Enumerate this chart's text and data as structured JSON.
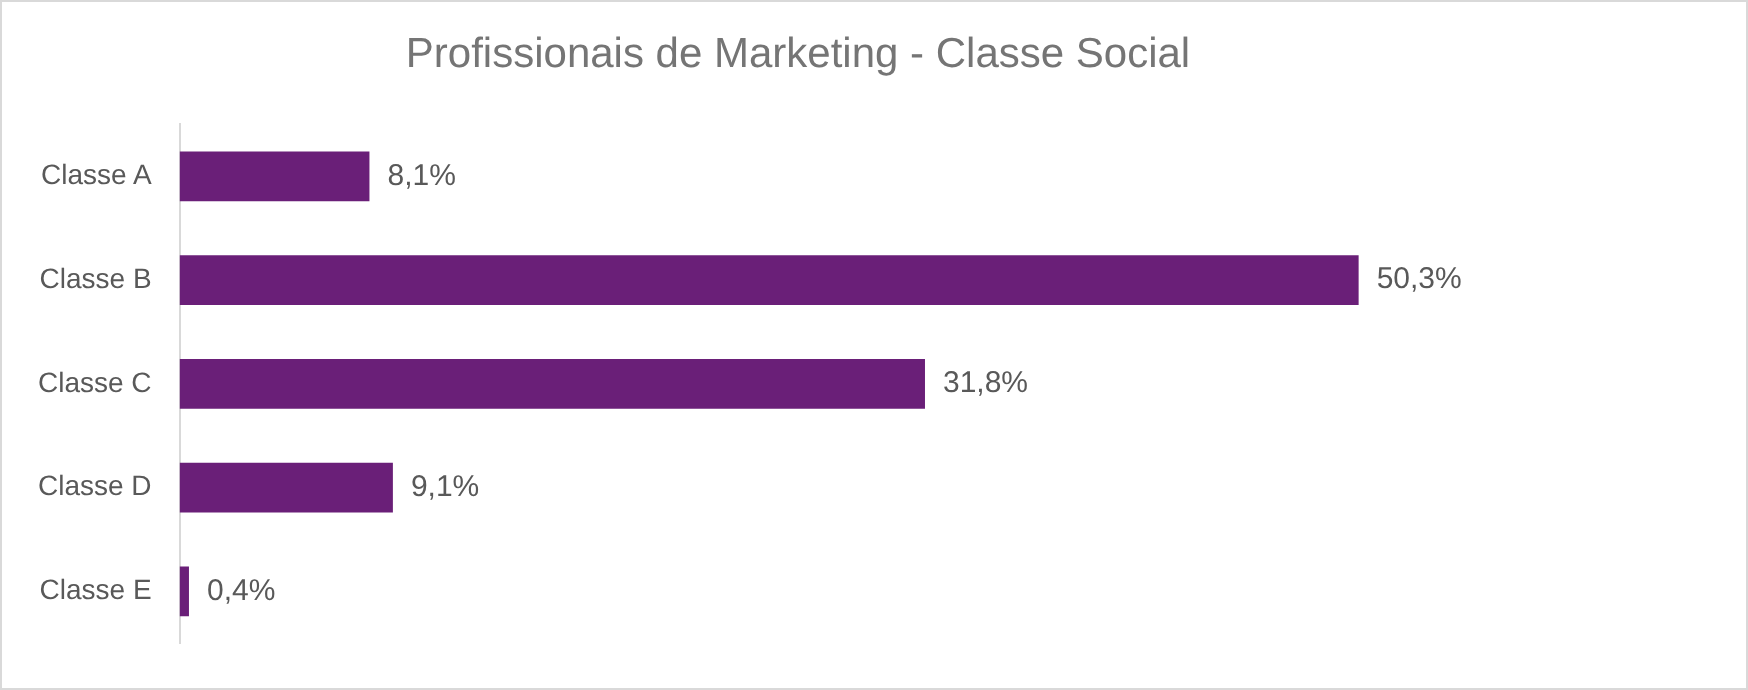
{
  "chart_data": {
    "type": "bar",
    "orientation": "horizontal",
    "title": "Profissionais de Marketing - Classe Social",
    "categories": [
      "Classe A",
      "Classe B",
      "Classe C",
      "Classe D",
      "Classe E"
    ],
    "values": [
      8.1,
      50.3,
      31.8,
      9.1,
      0.4
    ],
    "value_labels": [
      "8,1%",
      "50,3%",
      "31,8%",
      "9,1%",
      "0,4%"
    ],
    "color": "#6a1f78",
    "tick_labels": "y",
    "grid": false,
    "legend": false
  }
}
